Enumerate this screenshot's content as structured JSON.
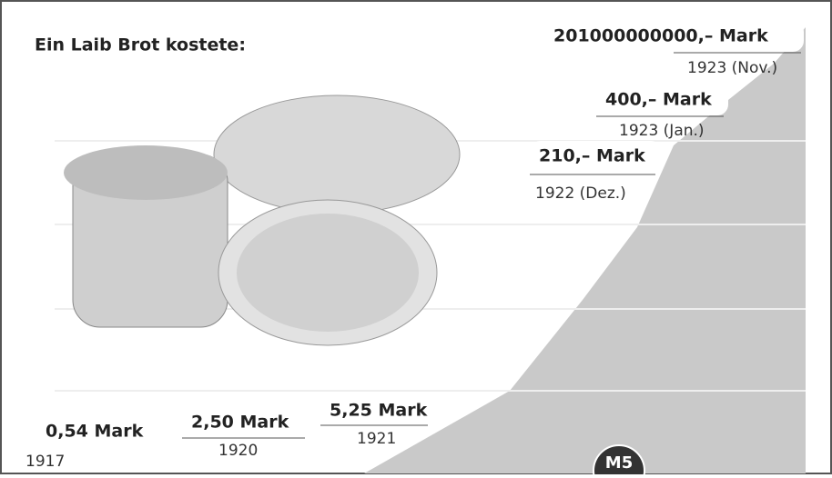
{
  "title": "Ein Laib Brot kostete:",
  "entries": [
    {
      "price": "0,54 Mark",
      "year": "1917"
    },
    {
      "price": "2,50 Mark",
      "year": "1920"
    },
    {
      "price": "5,25 Mark",
      "year": "1921"
    },
    {
      "price": "210,– Mark",
      "year": "1922 (Dez.)"
    },
    {
      "price": "400,– Mark",
      "year": "1923 (Jan.)"
    },
    {
      "price": "201000000000,– Mark",
      "year": "1923 (Nov.)"
    }
  ],
  "badge": "M5"
}
